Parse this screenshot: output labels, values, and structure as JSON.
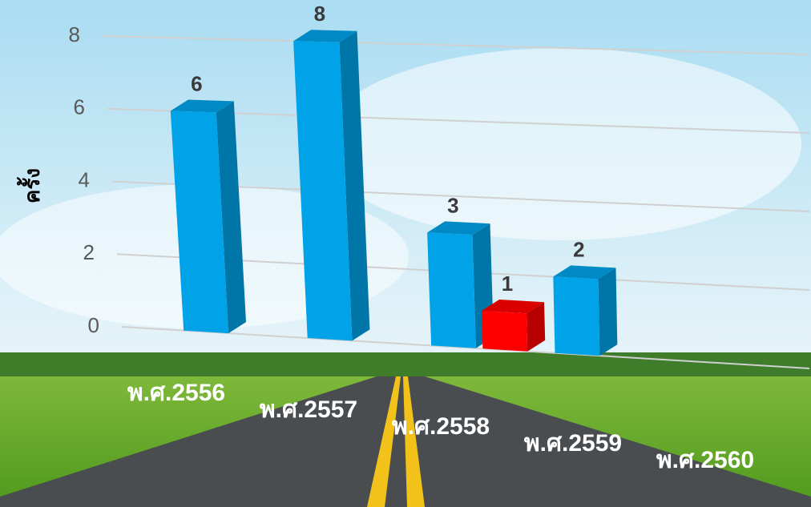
{
  "chart_data": {
    "type": "bar3d",
    "y_label": "ครั้ง",
    "categories": [
      "พ.ศ.2556",
      "พ.ศ.2557",
      "พ.ศ.2558",
      "พ.ศ.2559",
      "พ.ศ.2560"
    ],
    "series": [
      {
        "color": "#00a2e8",
        "values": [
          6,
          8,
          3,
          2,
          null
        ]
      },
      {
        "color": "#ff0000",
        "values": [
          null,
          null,
          1,
          null,
          null
        ]
      }
    ],
    "ylim": [
      0,
      8
    ],
    "yticks": [
      0,
      2,
      4,
      6,
      8
    ],
    "grid": true
  }
}
